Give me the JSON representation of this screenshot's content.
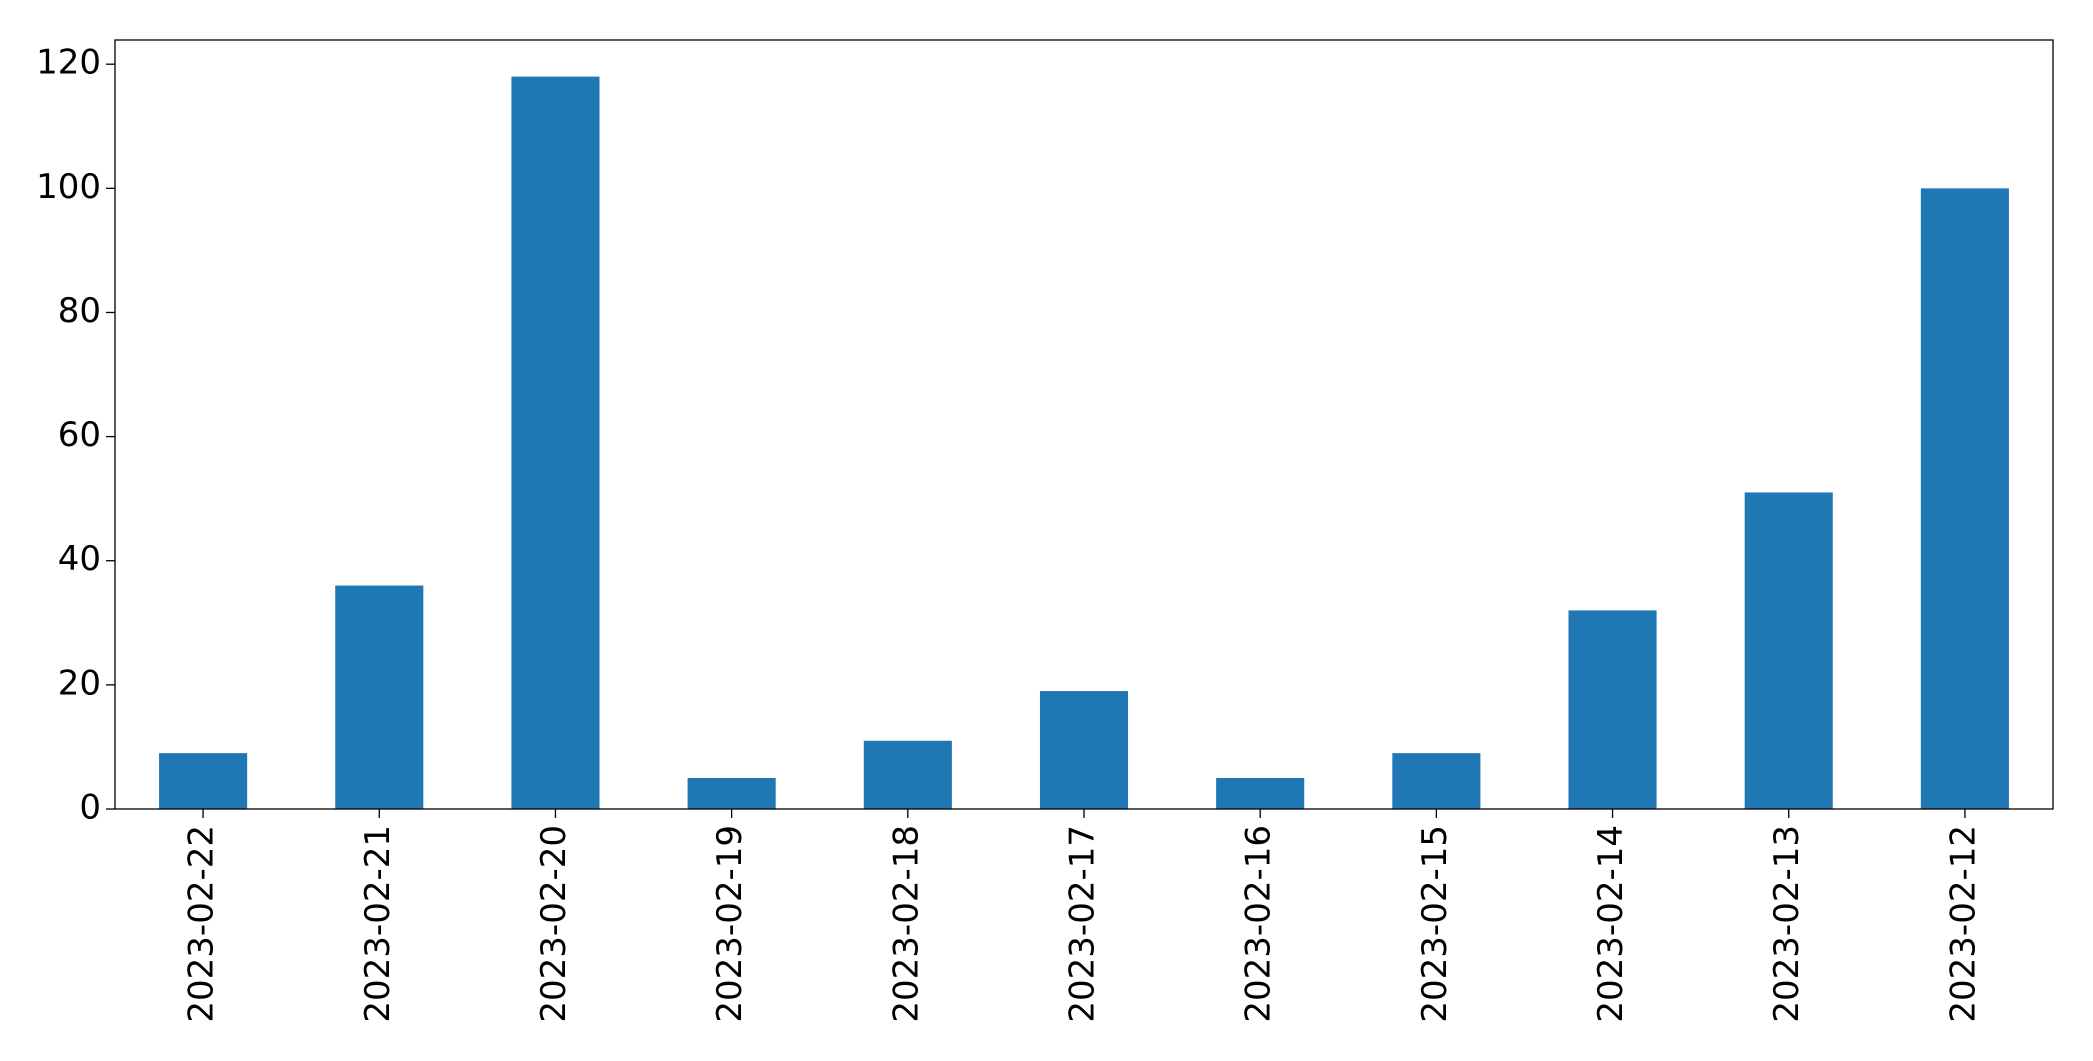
{
  "chart_data": {
    "type": "bar",
    "categories": [
      "2023-02-22",
      "2023-02-21",
      "2023-02-20",
      "2023-02-19",
      "2023-02-18",
      "2023-02-17",
      "2023-02-16",
      "2023-02-15",
      "2023-02-14",
      "2023-02-13",
      "2023-02-12"
    ],
    "values": [
      9,
      36,
      118,
      5,
      11,
      19,
      5,
      9,
      32,
      51,
      100
    ],
    "color": "#1f77b4",
    "ylim": [
      0,
      123.9
    ],
    "yticks": [
      0,
      20,
      40,
      60,
      80,
      100,
      120
    ],
    "grid": false
  }
}
